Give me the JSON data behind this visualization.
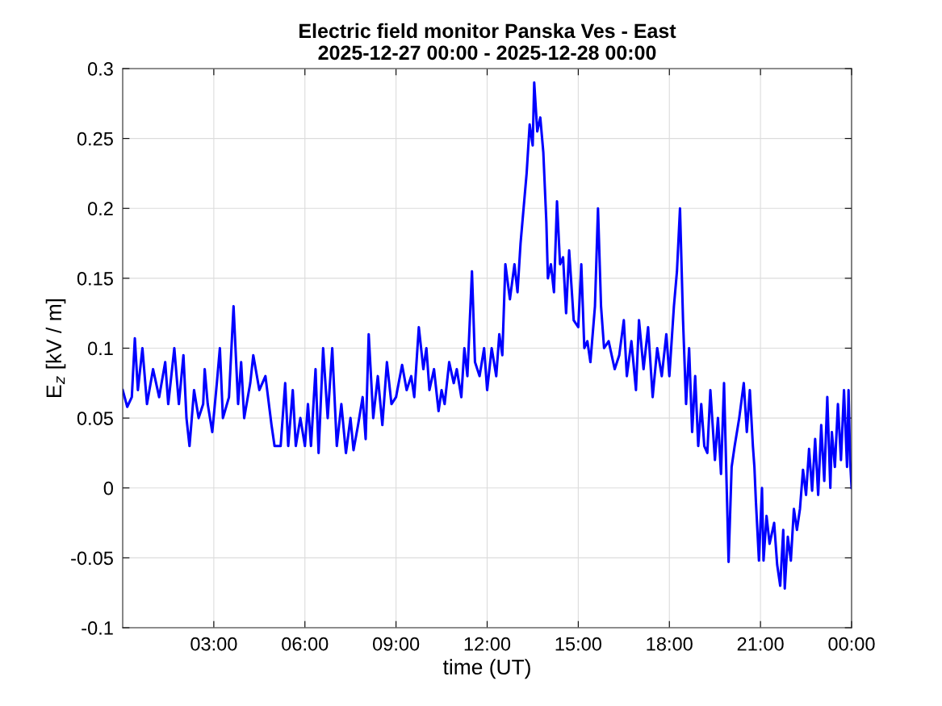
{
  "chart_data": {
    "type": "line",
    "title": "Electric field monitor Panska Ves - East\n2025-12-27 00:00 - 2025-12-28 00:00",
    "xlabel": "time (UT)",
    "ylabel": "E$_{z}$ [kV / m]",
    "xlim": [
      0,
      24
    ],
    "xticks": [
      {
        "value": 3,
        "label": "03:00"
      },
      {
        "value": 6,
        "label": "06:00"
      },
      {
        "value": 9,
        "label": "09:00"
      },
      {
        "value": 12,
        "label": "12:00"
      },
      {
        "value": 15,
        "label": "15:00"
      },
      {
        "value": 18,
        "label": "18:00"
      },
      {
        "value": 21,
        "label": "21:00"
      },
      {
        "value": 24,
        "label": "00:00"
      }
    ],
    "ylim": [
      -0.1,
      0.3
    ],
    "yticks": [
      -0.1,
      -0.05,
      0,
      0.05,
      0.1,
      0.15,
      0.2,
      0.25,
      0.3
    ],
    "grid": true,
    "line_style": "solid",
    "series": [
      {
        "color": "#0000ff",
        "x": [
          0.0,
          0.15,
          0.3,
          0.4,
          0.5,
          0.65,
          0.8,
          1.0,
          1.2,
          1.4,
          1.5,
          1.7,
          1.85,
          2.0,
          2.1,
          2.2,
          2.35,
          2.5,
          2.65,
          2.7,
          2.8,
          2.95,
          3.1,
          3.2,
          3.3,
          3.5,
          3.65,
          3.8,
          3.9,
          4.0,
          4.2,
          4.3,
          4.5,
          4.7,
          4.9,
          5.0,
          5.2,
          5.35,
          5.45,
          5.6,
          5.7,
          5.85,
          6.0,
          6.1,
          6.2,
          6.35,
          6.45,
          6.6,
          6.75,
          6.9,
          7.05,
          7.2,
          7.35,
          7.5,
          7.6,
          7.75,
          7.9,
          8.0,
          8.1,
          8.25,
          8.4,
          8.55,
          8.7,
          8.85,
          9.0,
          9.2,
          9.35,
          9.5,
          9.6,
          9.75,
          9.9,
          10.0,
          10.1,
          10.25,
          10.4,
          10.5,
          10.6,
          10.75,
          10.9,
          11.0,
          11.15,
          11.25,
          11.35,
          11.5,
          11.6,
          11.75,
          11.9,
          12.0,
          12.15,
          12.3,
          12.4,
          12.5,
          12.6,
          12.75,
          12.9,
          13.0,
          13.1,
          13.2,
          13.3,
          13.4,
          13.5,
          13.55,
          13.65,
          13.75,
          13.85,
          13.95,
          14.0,
          14.1,
          14.2,
          14.3,
          14.4,
          14.5,
          14.6,
          14.7,
          14.85,
          15.0,
          15.1,
          15.2,
          15.3,
          15.4,
          15.55,
          15.65,
          15.75,
          15.85,
          16.0,
          16.2,
          16.35,
          16.5,
          16.6,
          16.75,
          16.9,
          17.0,
          17.15,
          17.3,
          17.45,
          17.6,
          17.75,
          17.9,
          18.0,
          18.15,
          18.25,
          18.35,
          18.45,
          18.55,
          18.65,
          18.75,
          18.85,
          18.95,
          19.05,
          19.15,
          19.25,
          19.35,
          19.5,
          19.6,
          19.7,
          19.8,
          19.9,
          19.95,
          20.05,
          20.15,
          20.3,
          20.45,
          20.55,
          20.65,
          20.75,
          20.8,
          20.85,
          20.95,
          21.05,
          21.1,
          21.2,
          21.3,
          21.45,
          21.55,
          21.65,
          21.75,
          21.8,
          21.9,
          22.0,
          22.1,
          22.2,
          22.3,
          22.4,
          22.5,
          22.6,
          22.7,
          22.8,
          22.9,
          23.0,
          23.1,
          23.2,
          23.3,
          23.35,
          23.45,
          23.55,
          23.65,
          23.75,
          23.85,
          23.9,
          23.95,
          24.0
        ],
        "values": [
          0.07,
          0.058,
          0.065,
          0.107,
          0.07,
          0.1,
          0.06,
          0.085,
          0.065,
          0.09,
          0.06,
          0.1,
          0.06,
          0.095,
          0.05,
          0.03,
          0.07,
          0.05,
          0.06,
          0.085,
          0.06,
          0.04,
          0.075,
          0.1,
          0.05,
          0.065,
          0.13,
          0.06,
          0.09,
          0.05,
          0.075,
          0.095,
          0.07,
          0.08,
          0.045,
          0.03,
          0.03,
          0.075,
          0.03,
          0.07,
          0.03,
          0.05,
          0.03,
          0.06,
          0.03,
          0.085,
          0.025,
          0.1,
          0.05,
          0.1,
          0.03,
          0.06,
          0.025,
          0.05,
          0.027,
          0.045,
          0.065,
          0.035,
          0.11,
          0.05,
          0.08,
          0.045,
          0.09,
          0.06,
          0.065,
          0.088,
          0.07,
          0.08,
          0.065,
          0.115,
          0.085,
          0.1,
          0.07,
          0.085,
          0.055,
          0.07,
          0.06,
          0.09,
          0.075,
          0.085,
          0.065,
          0.1,
          0.08,
          0.155,
          0.09,
          0.08,
          0.1,
          0.07,
          0.1,
          0.08,
          0.11,
          0.095,
          0.16,
          0.135,
          0.16,
          0.14,
          0.175,
          0.2,
          0.225,
          0.26,
          0.245,
          0.29,
          0.255,
          0.265,
          0.24,
          0.19,
          0.15,
          0.16,
          0.14,
          0.205,
          0.16,
          0.165,
          0.125,
          0.17,
          0.12,
          0.115,
          0.16,
          0.1,
          0.105,
          0.09,
          0.13,
          0.2,
          0.13,
          0.1,
          0.105,
          0.085,
          0.095,
          0.12,
          0.08,
          0.105,
          0.07,
          0.12,
          0.085,
          0.115,
          0.065,
          0.1,
          0.08,
          0.11,
          0.08,
          0.13,
          0.155,
          0.2,
          0.12,
          0.06,
          0.1,
          0.04,
          0.08,
          0.03,
          0.06,
          0.03,
          0.025,
          0.07,
          0.02,
          0.05,
          0.01,
          0.075,
          -0.01,
          -0.053,
          0.015,
          0.03,
          0.05,
          0.075,
          0.04,
          0.07,
          0.03,
          0.015,
          -0.01,
          -0.052,
          0.0,
          -0.052,
          -0.02,
          -0.04,
          -0.025,
          -0.055,
          -0.07,
          -0.03,
          -0.072,
          -0.035,
          -0.052,
          -0.015,
          -0.03,
          -0.015,
          0.013,
          -0.005,
          0.028,
          -0.002,
          0.035,
          -0.005,
          0.045,
          0.005,
          0.065,
          0.0,
          0.04,
          0.015,
          0.06,
          0.02,
          0.07,
          0.015,
          0.07,
          0.02,
          0.0
        ]
      }
    ]
  }
}
